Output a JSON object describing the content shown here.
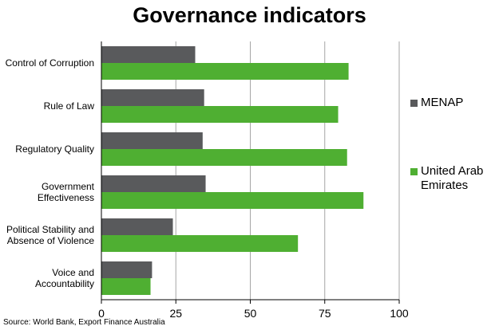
{
  "chart_data": {
    "type": "bar",
    "orientation": "horizontal",
    "title": "Governance indicators",
    "categories": [
      "Control of Corruption",
      "Rule of Law",
      "Regulatory Quality",
      "Government Effectiveness",
      "Political Stability and Absence of Violence",
      "Voice and Accountability"
    ],
    "category_lines": [
      [
        "Control of Corruption"
      ],
      [
        "Rule of Law"
      ],
      [
        "Regulatory Quality"
      ],
      [
        "Government",
        "Effectiveness"
      ],
      [
        "Political Stability and",
        "Absence of Violence"
      ],
      [
        "Voice and",
        "Accountability"
      ]
    ],
    "series": [
      {
        "name": "MENAP",
        "color": "#595a5c",
        "values": [
          31.5,
          34.5,
          34,
          35,
          24,
          17
        ]
      },
      {
        "name": "United Arab Emirates",
        "color": "#4faf32",
        "values": [
          83,
          79.5,
          82.5,
          88,
          66,
          16.5
        ]
      }
    ],
    "xlim": [
      0,
      100
    ],
    "xticks": [
      0,
      25,
      50,
      75,
      100
    ],
    "grid": "vertical",
    "legend_position": "right",
    "source": "Source: World Bank, Export Finance Australia"
  }
}
